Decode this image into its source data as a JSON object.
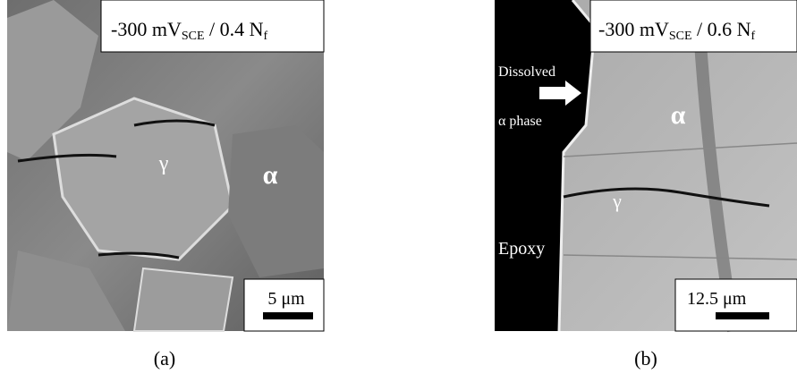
{
  "panels": [
    {
      "label": {
        "main": "-300 mV",
        "sub1": "SCE",
        "mid": " / 0.4 N",
        "sub2": "f"
      },
      "scale_bar": "5 μm",
      "annotations": [
        "γ",
        "α"
      ],
      "caption": "(a)"
    },
    {
      "label": {
        "main": "-300 mV",
        "sub1": "SCE",
        "mid": " / 0.6 N",
        "sub2": "f"
      },
      "scale_bar": "12.5 μm",
      "annotations": [
        "Dissolved",
        "α phase",
        "α",
        "γ",
        "Epoxy"
      ],
      "caption": "(b)"
    }
  ]
}
